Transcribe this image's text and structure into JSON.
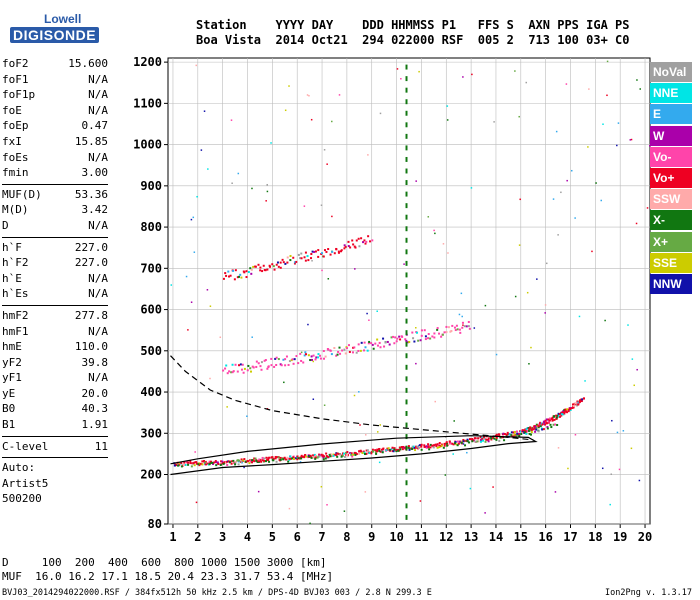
{
  "logo": {
    "line1": "Lowell",
    "line2": "DIGISONDE"
  },
  "header": {
    "line1": "Station    YYYY DAY    DDD HHMMSS P1   FFS S  AXN PPS IGA PS",
    "line2": "Boa Vista  2014 Oct21  294 022000 RSF  005 2  713 100 03+ C0"
  },
  "parameters": [
    {
      "name": "foF2",
      "value": "15.600"
    },
    {
      "name": "foF1",
      "value": "N/A"
    },
    {
      "name": "foF1p",
      "value": "N/A"
    },
    {
      "name": "foE",
      "value": "N/A"
    },
    {
      "name": "foEp",
      "value": "0.47"
    },
    {
      "name": "fxI",
      "value": "15.85"
    },
    {
      "name": "foEs",
      "value": "N/A"
    },
    {
      "name": "fmin",
      "value": "3.00"
    },
    {
      "sep": true
    },
    {
      "name": "MUF(D)",
      "value": "53.36"
    },
    {
      "name": "M(D)",
      "value": "3.42"
    },
    {
      "name": "D",
      "value": "N/A"
    },
    {
      "sep": true
    },
    {
      "name": "h`F",
      "value": "227.0"
    },
    {
      "name": "h`F2",
      "value": "227.0"
    },
    {
      "name": "h`E",
      "value": "N/A"
    },
    {
      "name": "h`Es",
      "value": "N/A"
    },
    {
      "sep": true
    },
    {
      "name": "hmF2",
      "value": "277.8"
    },
    {
      "name": "hmF1",
      "value": "N/A"
    },
    {
      "name": "hmE",
      "value": "110.0"
    },
    {
      "name": "yF2",
      "value": "39.8"
    },
    {
      "name": "yF1",
      "value": "N/A"
    },
    {
      "name": "yE",
      "value": "20.0"
    },
    {
      "name": "B0",
      "value": "40.3"
    },
    {
      "name": "B1",
      "value": "1.91"
    },
    {
      "sep": true
    },
    {
      "name": "C-level",
      "value": "11"
    },
    {
      "sep": true
    },
    {
      "text": "Auto:"
    },
    {
      "text": "Artist5"
    },
    {
      "text": "500200"
    }
  ],
  "legend": [
    {
      "label": "NoVal",
      "color": "#a0a0a0"
    },
    {
      "label": "NNE",
      "color": "#00e5e5"
    },
    {
      "label": "E",
      "color": "#33aaee"
    },
    {
      "label": "W",
      "color": "#aa00aa"
    },
    {
      "label": "Vo-",
      "color": "#ff44aa"
    },
    {
      "label": "Vo+",
      "color": "#ee0022"
    },
    {
      "label": "SSW",
      "color": "#ffaaaa"
    },
    {
      "label": "X-",
      "color": "#117711"
    },
    {
      "label": "X+",
      "color": "#66aa44"
    },
    {
      "label": "SSE",
      "color": "#cccc00"
    },
    {
      "label": "NNW",
      "color": "#1111aa"
    }
  ],
  "footer": {
    "line1": "D     100  200  400  600  800 1000 1500 3000 [km]",
    "line2": "MUF  16.0 16.2 17.1 18.5 20.4 23.3 31.7 53.4 [MHz]",
    "line3": "BVJ03_2014294022000.RSF / 384fx512h 50 kHz 2.5 km / DPS-4D BVJ03 003 / 2.8 N 299.3 E",
    "version": "Ion2Png v. 1.3.17"
  },
  "chart_data": {
    "type": "scatter",
    "title": "",
    "xlabel": "",
    "ylabel": "",
    "xlim": [
      0.8,
      20.2
    ],
    "ylim": [
      80,
      1210
    ],
    "x_ticks": [
      1,
      2,
      3,
      4,
      5,
      6,
      7,
      8,
      9,
      10,
      11,
      12,
      13,
      14,
      15,
      16,
      17,
      18,
      19,
      20
    ],
    "y_ticks": [
      80,
      200,
      300,
      400,
      500,
      600,
      700,
      800,
      900,
      1000,
      1100,
      1200
    ],
    "grid": true,
    "legend_placement": "right",
    "traces": [
      {
        "name": "F2 O-trace",
        "color": "#ee0022",
        "x": [
          1.0,
          2.0,
          3.0,
          4.0,
          5.0,
          6.0,
          7.0,
          8.0,
          9.0,
          10.0,
          11.0,
          12.0,
          13.0,
          14.0,
          15.0,
          15.5,
          16.0,
          16.5,
          17.0,
          17.5
        ],
        "y": [
          228,
          230,
          232,
          236,
          240,
          244,
          248,
          253,
          258,
          264,
          270,
          277,
          285,
          294,
          305,
          316,
          330,
          346,
          365,
          385
        ]
      },
      {
        "name": "F2 X-trace",
        "color": "#117711",
        "x": [
          1.0,
          3.0,
          5.0,
          7.0,
          9.0,
          11.0,
          13.0,
          14.5,
          15.5,
          16.5
        ],
        "y": [
          225,
          229,
          236,
          244,
          254,
          266,
          280,
          292,
          306,
          328
        ]
      },
      {
        "name": "2nd hop",
        "color": "#ff44aa",
        "x": [
          3.0,
          4.0,
          5.0,
          6.0,
          7.0,
          8.0,
          9.0,
          10.0,
          11.0,
          12.0,
          13.0
        ],
        "y": [
          455,
          462,
          474,
          484,
          494,
          506,
          516,
          528,
          540,
          552,
          562
        ]
      },
      {
        "name": "3rd hop",
        "color": "#ee0022",
        "x": [
          3.0,
          4.0,
          5.0,
          6.0,
          7.0,
          8.0,
          9.0
        ],
        "y": [
          682,
          694,
          710,
          725,
          741,
          758,
          775
        ]
      }
    ],
    "profile_solid": {
      "x": [
        0.9,
        3,
        5,
        7,
        9,
        11,
        13,
        14.5,
        15.6,
        15.3,
        13,
        10,
        7,
        4,
        2,
        0.9
      ],
      "y": [
        200,
        217,
        224,
        232,
        240,
        250,
        263,
        275,
        280,
        290,
        294,
        288,
        274,
        256,
        238,
        226
      ]
    },
    "profile_dashed": {
      "x": [
        0.9,
        1.5,
        2.5,
        3.5,
        5,
        7,
        9,
        11,
        13,
        14.5,
        15.5
      ],
      "y": [
        488,
        450,
        405,
        380,
        355,
        335,
        320,
        309,
        298,
        290,
        284
      ]
    },
    "vertical_marker": {
      "x": 10.4,
      "color": "#117711"
    }
  }
}
